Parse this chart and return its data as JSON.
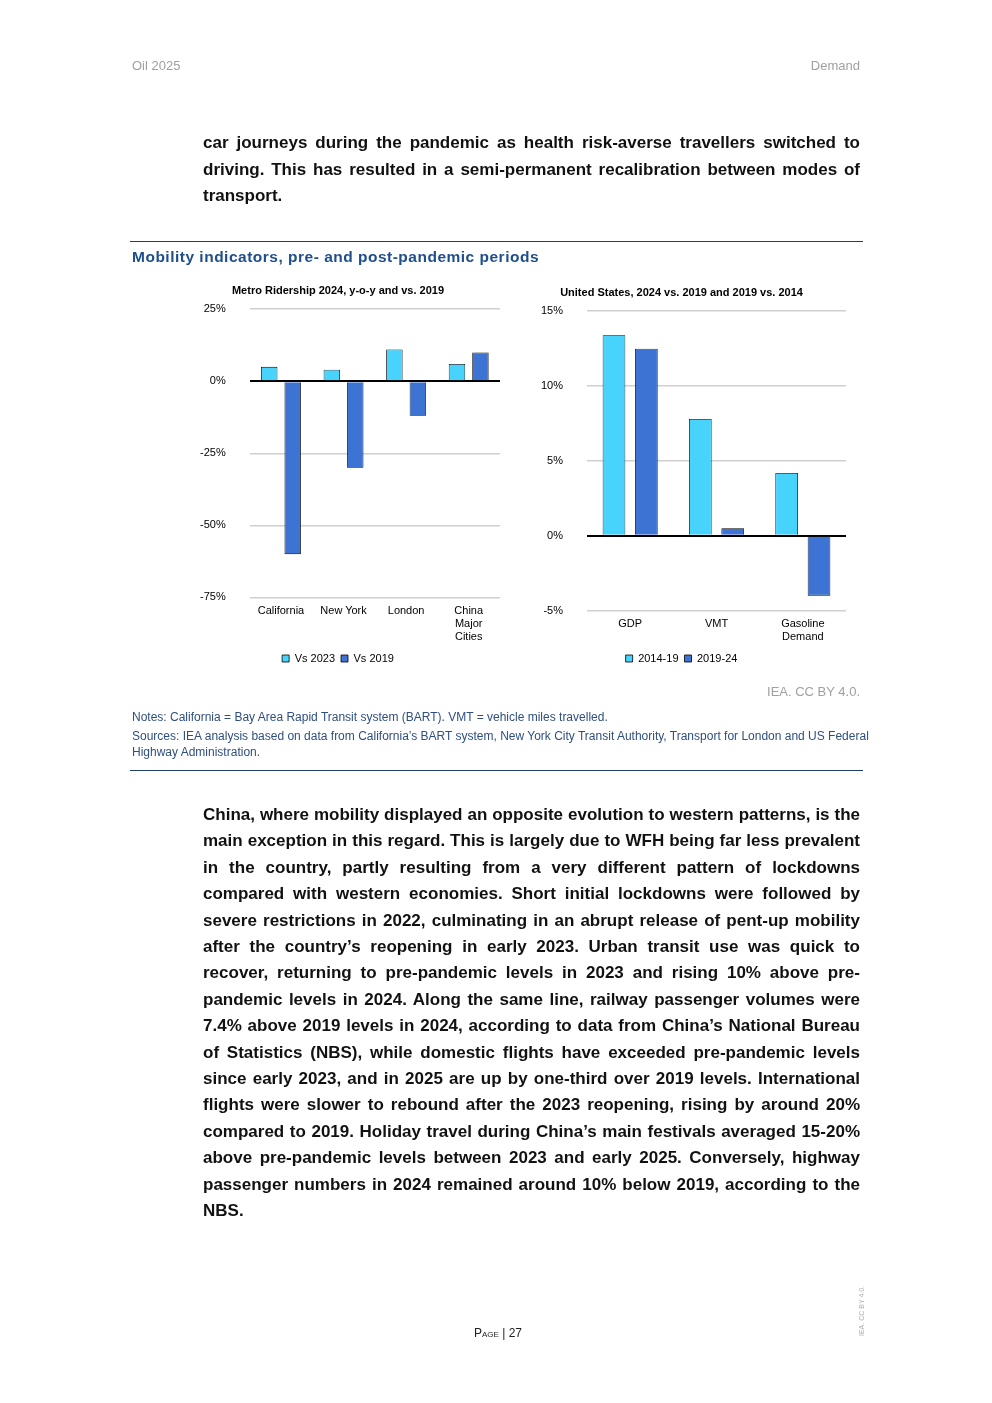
{
  "chart_data": [
    {
      "type": "bar",
      "title": "Metro Ridership 2024, y-o-y and vs. 2019",
      "categories": [
        "California",
        "New York",
        "London",
        "China Major Cities"
      ],
      "series": [
        {
          "name": "Vs 2023",
          "color": "#47d3fb",
          "values": [
            5,
            4,
            11,
            6
          ]
        },
        {
          "name": "Vs 2019",
          "color": "#3d73d2",
          "values": [
            -60,
            -30,
            -12,
            10
          ]
        }
      ],
      "ylim": [
        -75,
        25
      ],
      "yticks": [
        {
          "value": -75,
          "label": "-75%"
        },
        {
          "value": -50,
          "label": "-50%"
        },
        {
          "value": -25,
          "label": "-25%"
        },
        {
          "value": 0,
          "label": "0%"
        },
        {
          "value": 25,
          "label": "25%"
        }
      ],
      "grid": "y",
      "legend": "bottom",
      "annotations": [
        "Oil 2025",
        "Demand",
        "car journeys during the pandemic as health risk-averse travellers switched to driving. This has resulted in a semi-permanent recalibration between modes of transport.",
        "Mobility indicators, pre- and post-pandemic periods",
        "IEA. CC BY 4.0.",
        "Notes: California = Bay Area Rapid Transit system (BART). VMT = vehicle miles travelled.",
        "Sources: IEA analysis based on data from California’s BART system, New York City Transit Authority, Transport for London and US Federal Highway Administration.",
        "China, where mobility displayed an opposite evolution to western patterns, is the main exception in this regard. This is largely due to WFH being far less prevalent in the country, partly resulting from a very different pattern of lockdowns compared with western economies. Short initial lockdowns were followed by severe restrictions in 2022, culminating in an abrupt release of pent-up mobility after the country’s reopening in early 2023. Urban transit use was quick to recover, returning to pre-pandemic levels in 2023 and rising 10% above pre-pandemic levels in 2024. Along the same line, railway passenger volumes were 7.4% above 2019 levels in 2024, according to data from China’s National Bureau of Statistics (NBS), while domestic flights have exceeded pre-pandemic levels since early 2023, and in 2025 are up by one-third over 2019 levels. International flights were slower to rebound after the 2023 reopening, rising by around 20% compared to 2019. Holiday travel during China’s main festivals averaged 15-20% above pre-pandemic levels between 2023 and early 2025. Conversely, highway passenger numbers in 2024 remained around 10% below 2019, according to the NBS.",
        "Page | 27",
        "IEA. CC BY 4.0."
      ]
    },
    {
      "type": "bar",
      "title": "United States, 2024 vs. 2019 and 2019 vs. 2014",
      "categories": [
        "GDP",
        "VMT",
        "Gasoline Demand"
      ],
      "series": [
        {
          "name": "2014-19",
          "color": "#47d3fb",
          "values": [
            13.4,
            7.8,
            4.2
          ]
        },
        {
          "name": "2019-24",
          "color": "#3d73d2",
          "values": [
            12.5,
            0.5,
            -4.0
          ]
        }
      ],
      "ylim": [
        -5,
        15
      ],
      "yticks": [
        {
          "value": -5,
          "label": "-5%"
        },
        {
          "value": 0,
          "label": "0%"
        },
        {
          "value": 5,
          "label": "5%"
        },
        {
          "value": 10,
          "label": "10%"
        },
        {
          "value": 15,
          "label": "15%"
        }
      ],
      "grid": "y",
      "legend": "bottom"
    }
  ]
}
